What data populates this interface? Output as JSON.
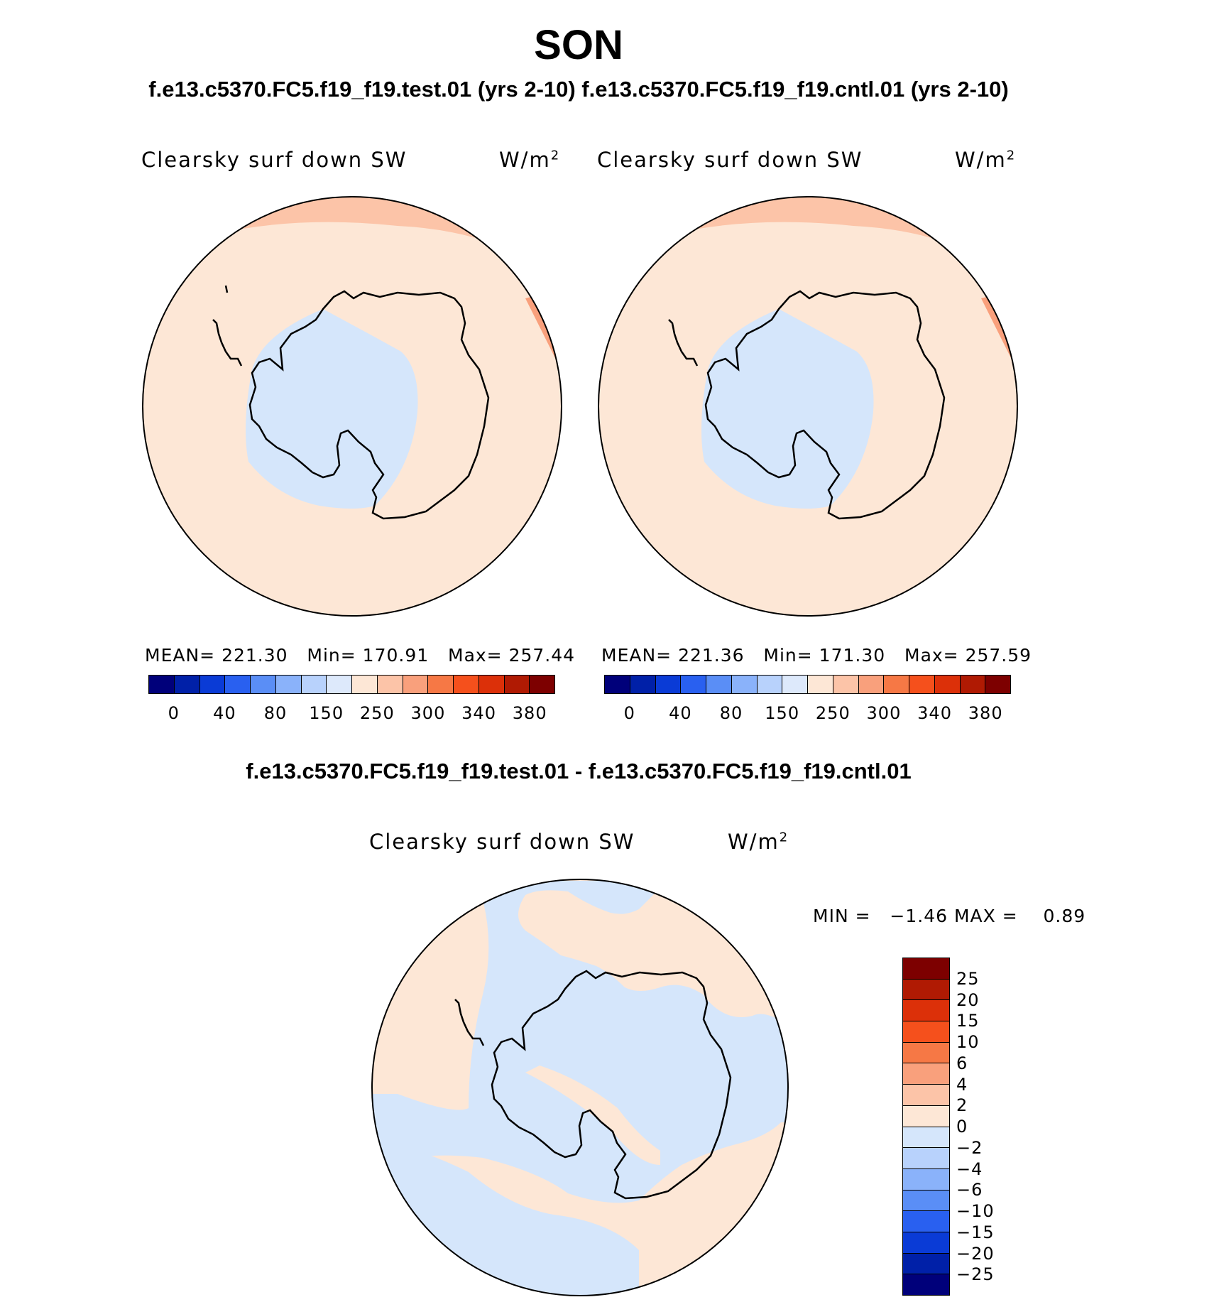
{
  "season": "SON",
  "case_title": "f.e13.c5370.FC5.f19_f19.test.01 (yrs 2-10) f.e13.c5370.FC5.f19_f19.cntl.01 (yrs 2-10)",
  "diff_title": "f.e13.c5370.FC5.f19_f19.test.01 - f.e13.c5370.FC5.f19_f19.cntl.01",
  "panels": [
    {
      "variable": "Clearsky surf down SW",
      "units": "W/m",
      "units_sup": "2",
      "mean_label": "MEAN=",
      "mean": "221.30",
      "min_label": "Min=",
      "min": "170.91",
      "max_label": "Max=",
      "max": "257.44"
    },
    {
      "variable": "Clearsky surf down SW",
      "units": "W/m",
      "units_sup": "2",
      "mean_label": "MEAN=",
      "mean": "221.36",
      "min_label": "Min=",
      "min": "171.30",
      "max_label": "Max=",
      "max": "257.59"
    }
  ],
  "diff_panel": {
    "variable": "Clearsky surf down SW",
    "units": "W/m",
    "units_sup": "2",
    "min_label": "MIN =",
    "min": "−1.46",
    "max_label": "MAX =",
    "max": "0.89"
  },
  "abs_colorbar": {
    "colors": [
      "#00007a",
      "#0020a8",
      "#0a3bd6",
      "#2960f0",
      "#5a8ef6",
      "#8ab2fa",
      "#b8d2fc",
      "#dde9fb",
      "#fde7d6",
      "#fcc4a8",
      "#f9a07c",
      "#f67845",
      "#f5501c",
      "#dc3009",
      "#b01a03",
      "#7d0000"
    ],
    "tick_labels": [
      "0",
      "40",
      "80",
      "150",
      "250",
      "300",
      "340",
      "380"
    ]
  },
  "diff_colorbar": {
    "colors_top_to_bottom": [
      "#7d0000",
      "#b01a03",
      "#dc3009",
      "#f5501c",
      "#f67845",
      "#f9a07c",
      "#fcc4a8",
      "#fde7d6",
      "#d5e6fb",
      "#b8d2fc",
      "#8ab2fa",
      "#5a8ef6",
      "#2960f0",
      "#0a3bd6",
      "#0020a8",
      "#00007a"
    ],
    "tick_labels_top_to_bottom": [
      "25",
      "20",
      "15",
      "10",
      "6",
      "4",
      "2",
      "0",
      "−2",
      "−4",
      "−6",
      "−10",
      "−15",
      "−20",
      "−25"
    ]
  },
  "map_fill": {
    "ocean_warm": "#fde7d6",
    "polar_cool": "#d5e6fb",
    "rim_warm": "#fcc4a8",
    "rim_hot": "#f9a07c"
  }
}
